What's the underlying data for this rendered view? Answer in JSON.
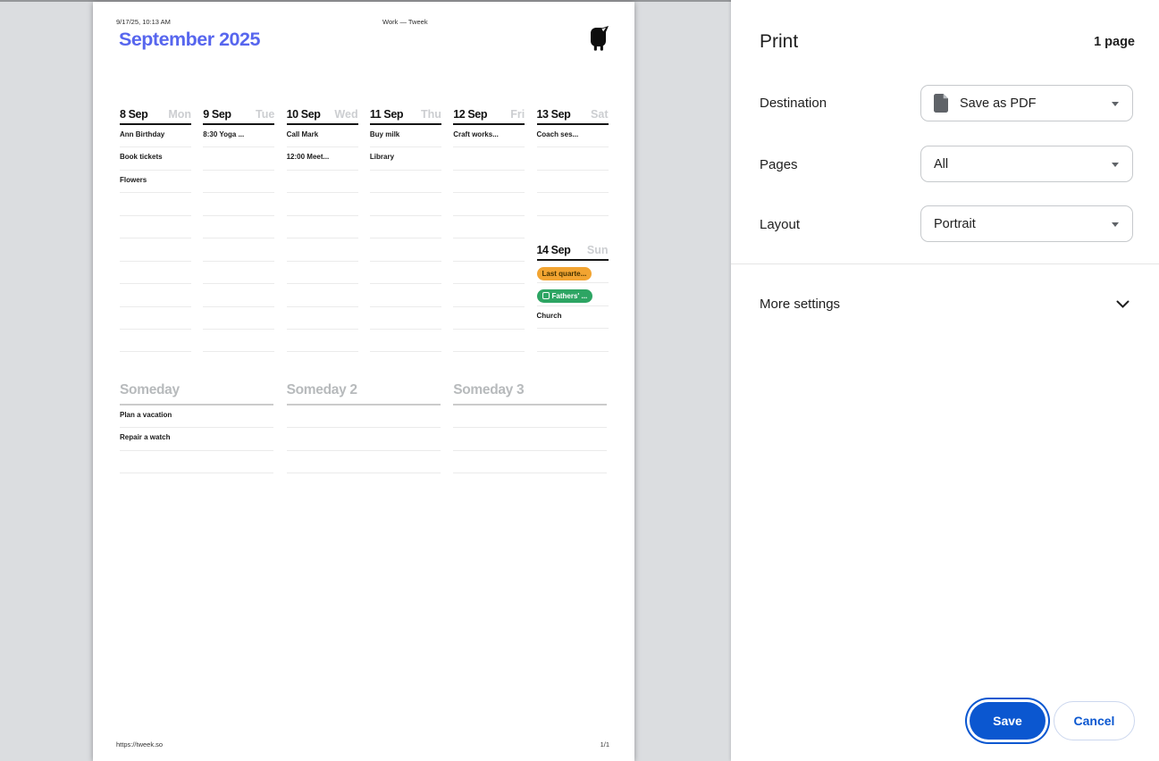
{
  "preview": {
    "page_header": {
      "datetime": "9/17/25, 10:13 AM",
      "doc_title": "Work — Tweek"
    },
    "month_title": "September 2025",
    "week_days": [
      {
        "date": "8 Sep",
        "weekday": "Mon",
        "blank_rows": 10,
        "tasks": [
          {
            "text": "Ann Birthday"
          },
          {
            "text": "Book tickets"
          },
          {
            "text": "Flowers"
          }
        ]
      },
      {
        "date": "9 Sep",
        "weekday": "Tue",
        "blank_rows": 10,
        "tasks": [
          {
            "text": "8:30 Yoga ..."
          }
        ]
      },
      {
        "date": "10 Sep",
        "weekday": "Wed",
        "blank_rows": 10,
        "tasks": [
          {
            "text": "Call Mark"
          },
          {
            "text": "12:00 Meet..."
          }
        ]
      },
      {
        "date": "11 Sep",
        "weekday": "Thu",
        "blank_rows": 10,
        "tasks": [
          {
            "text": "Buy milk"
          },
          {
            "text": "Library"
          }
        ]
      },
      {
        "date": "12 Sep",
        "weekday": "Fri",
        "blank_rows": 10,
        "tasks": [
          {
            "text": "Craft works..."
          }
        ]
      },
      {
        "date": "13 Sep",
        "weekday": "Sat",
        "blank_rows": 4,
        "tasks": [
          {
            "text": "Coach ses..."
          }
        ]
      },
      {
        "date": "14 Sep",
        "weekday": "Sun",
        "blank_rows": 4,
        "tasks": [
          {
            "text": "Last quarte...",
            "tag": "amber"
          },
          {
            "text": "Fathers' ...",
            "tag": "green",
            "icon": "calendar"
          },
          {
            "text": "Church"
          }
        ]
      }
    ],
    "someday_sections": [
      {
        "title": "Someday",
        "blank_rows": 3,
        "tasks": [
          "Plan a vacation",
          "Repair a watch"
        ]
      },
      {
        "title": "Someday 2",
        "blank_rows": 3,
        "tasks": []
      },
      {
        "title": "Someday 3",
        "blank_rows": 3,
        "tasks": []
      }
    ],
    "footer": {
      "url": "https://tweek.so",
      "page_indicator": "1/1"
    },
    "colors": {
      "accent_blue": "#5766ee",
      "amber_tag": "#f2a431",
      "green_tag": "#2da563"
    },
    "icons": {
      "logo": "tweek-chick",
      "green_tag_icon": "calendar"
    }
  },
  "settings": {
    "title": "Print",
    "page_count": "1 page",
    "fields": [
      {
        "label": "Destination",
        "value": "Save as PDF",
        "icon": "pdf-document"
      },
      {
        "label": "Pages",
        "value": "All"
      },
      {
        "label": "Layout",
        "value": "Portrait"
      }
    ],
    "more_settings_label": "More settings",
    "save_label": "Save",
    "cancel_label": "Cancel",
    "colors": {
      "primary_button": "#0b57d0"
    },
    "icons": {
      "dropdown": "caret-down",
      "more_settings": "chevron-down"
    }
  }
}
